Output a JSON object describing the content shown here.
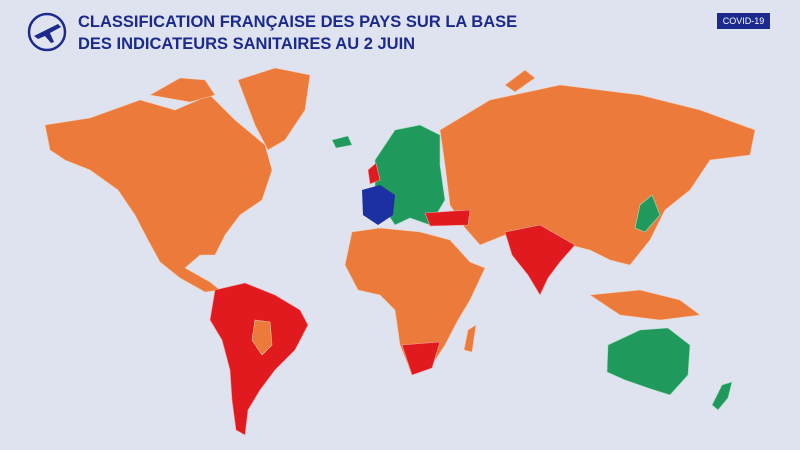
{
  "header": {
    "title_lines": [
      "CLASSIFICATION FRANÇAISE DES PAYS SUR LA BASE",
      "DES INDICATEURS SANITAIRES AU 2 JUIN"
    ],
    "badge": "COVID-19"
  }
}
